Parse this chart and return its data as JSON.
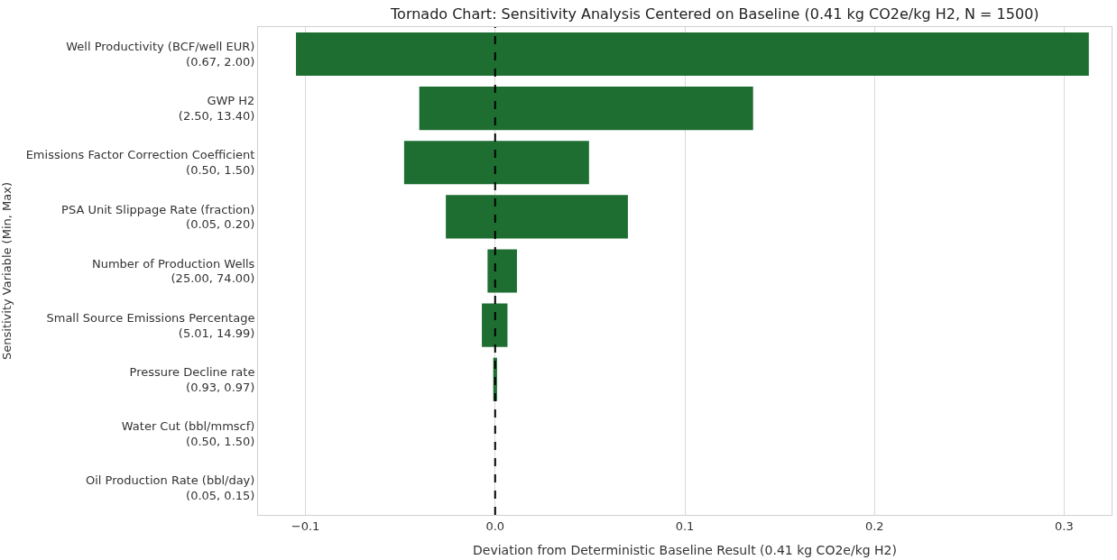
{
  "chart_data": {
    "type": "bar",
    "orientation": "horizontal",
    "title": "Tornado Chart: Sensitivity Analysis Centered on Baseline (0.41 kg CO2e/kg H2, N = 1500)",
    "xlabel": "Deviation from Deterministic Baseline Result (0.41 kg CO2e/kg H2)",
    "ylabel": "Sensitivity Variable (Min, Max)",
    "categories": [
      "Well Productivity (BCF/well EUR)\n(0.67, 2.00)",
      "GWP H2\n(2.50, 13.40)",
      "Emissions Factor Correction Coefficient\n(0.50, 1.50)",
      "PSA Unit Slippage Rate (fraction)\n(0.05, 0.20)",
      "Number of Production Wells\n(25.00, 74.00)",
      "Small Source Emissions Percentage\n(5.01, 14.99)",
      "Pressure Decline rate\n(0.93, 0.97)",
      "Water Cut (bbl/mmscf)\n(0.50, 1.50)",
      "Oil Production Rate (bbl/day)\n(0.05, 0.15)"
    ],
    "base": [
      -0.105,
      -0.04,
      -0.048,
      -0.026,
      -0.004,
      -0.007,
      -0.001,
      null,
      null
    ],
    "values": [
      0.418,
      0.176,
      0.0975,
      0.096,
      0.0155,
      0.0135,
      0.002,
      null,
      null
    ],
    "color": "#1e6e32",
    "xlim": [
      -0.125,
      0.325
    ],
    "xticks": [
      {
        "value": -0.1,
        "label": "−0.1"
      },
      {
        "value": 0,
        "label": "0.0"
      },
      {
        "value": 0.1,
        "label": "0.1"
      },
      {
        "value": 0.2,
        "label": "0.2"
      },
      {
        "value": 0.3,
        "label": "0.3"
      }
    ],
    "grid": "x",
    "ref_lines": [
      {
        "axis": "x",
        "value": 0,
        "color": "#000000",
        "line_style": "dashed"
      }
    ]
  }
}
